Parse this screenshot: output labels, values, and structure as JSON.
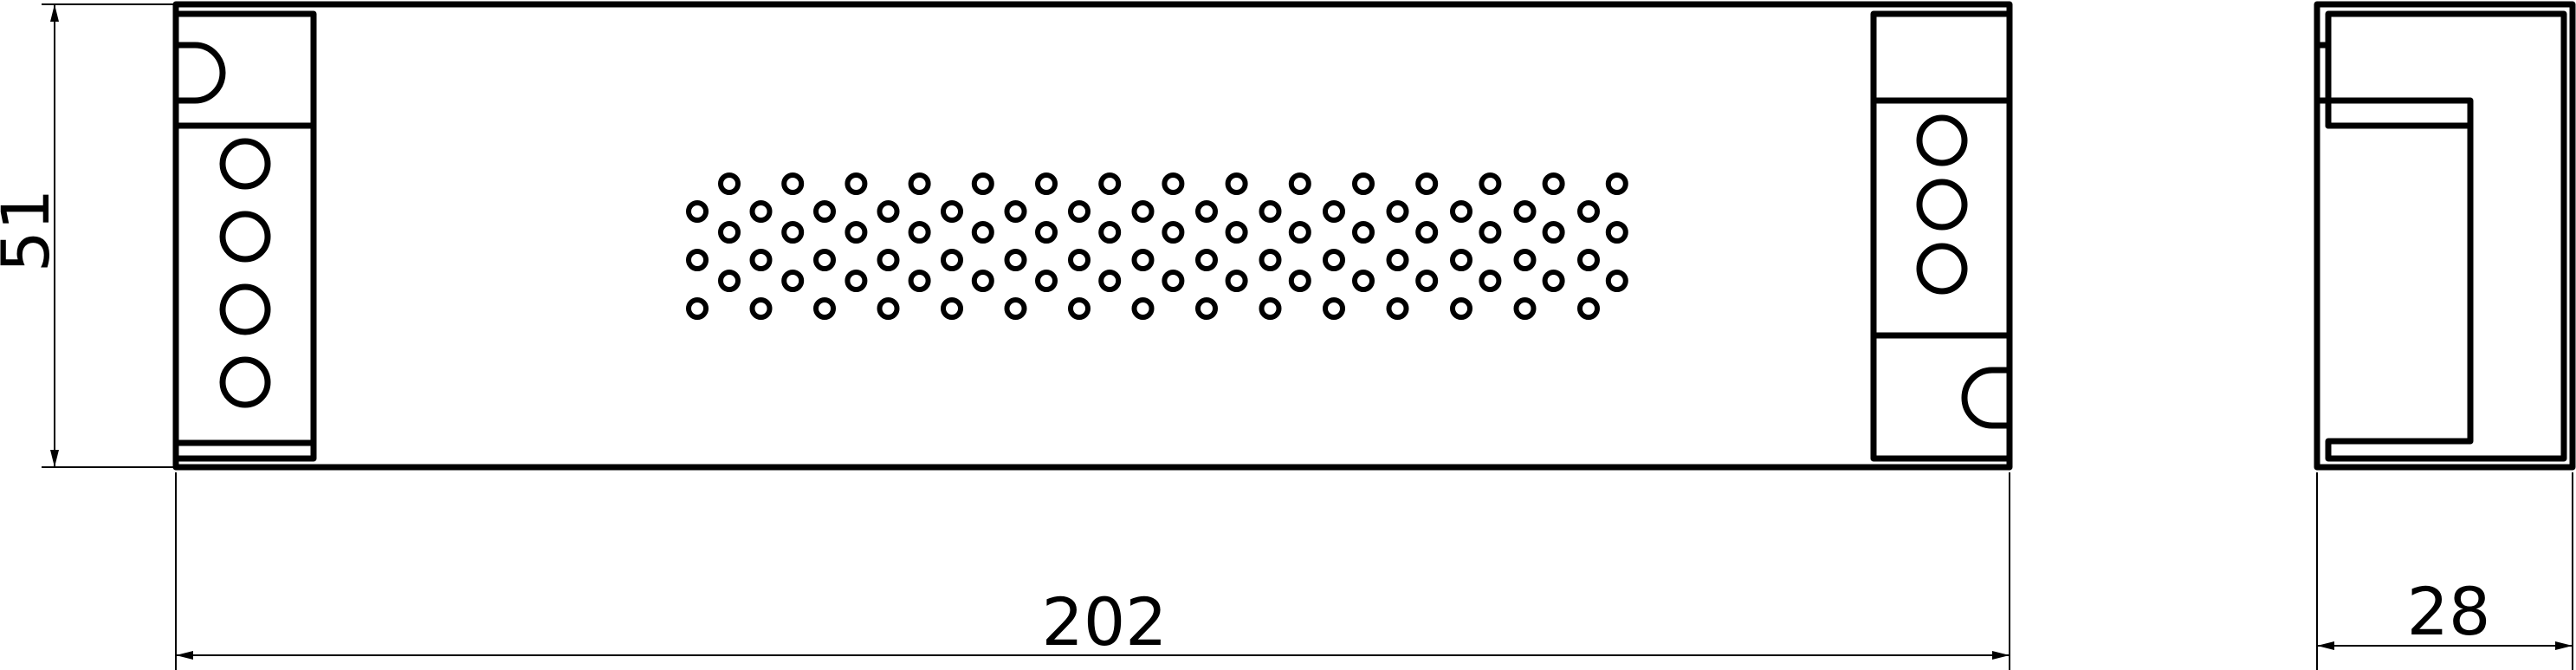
{
  "drawing": {
    "dimensions": {
      "height": "51",
      "length": "202",
      "depth": "28"
    },
    "front_view": {
      "left_cap_terminal_count": 4,
      "right_cap_terminal_count": 3,
      "vent_rows": 6,
      "vent_holes_per_row": 15
    },
    "colors": {
      "line": "#000000",
      "background": "#ffffff"
    }
  }
}
